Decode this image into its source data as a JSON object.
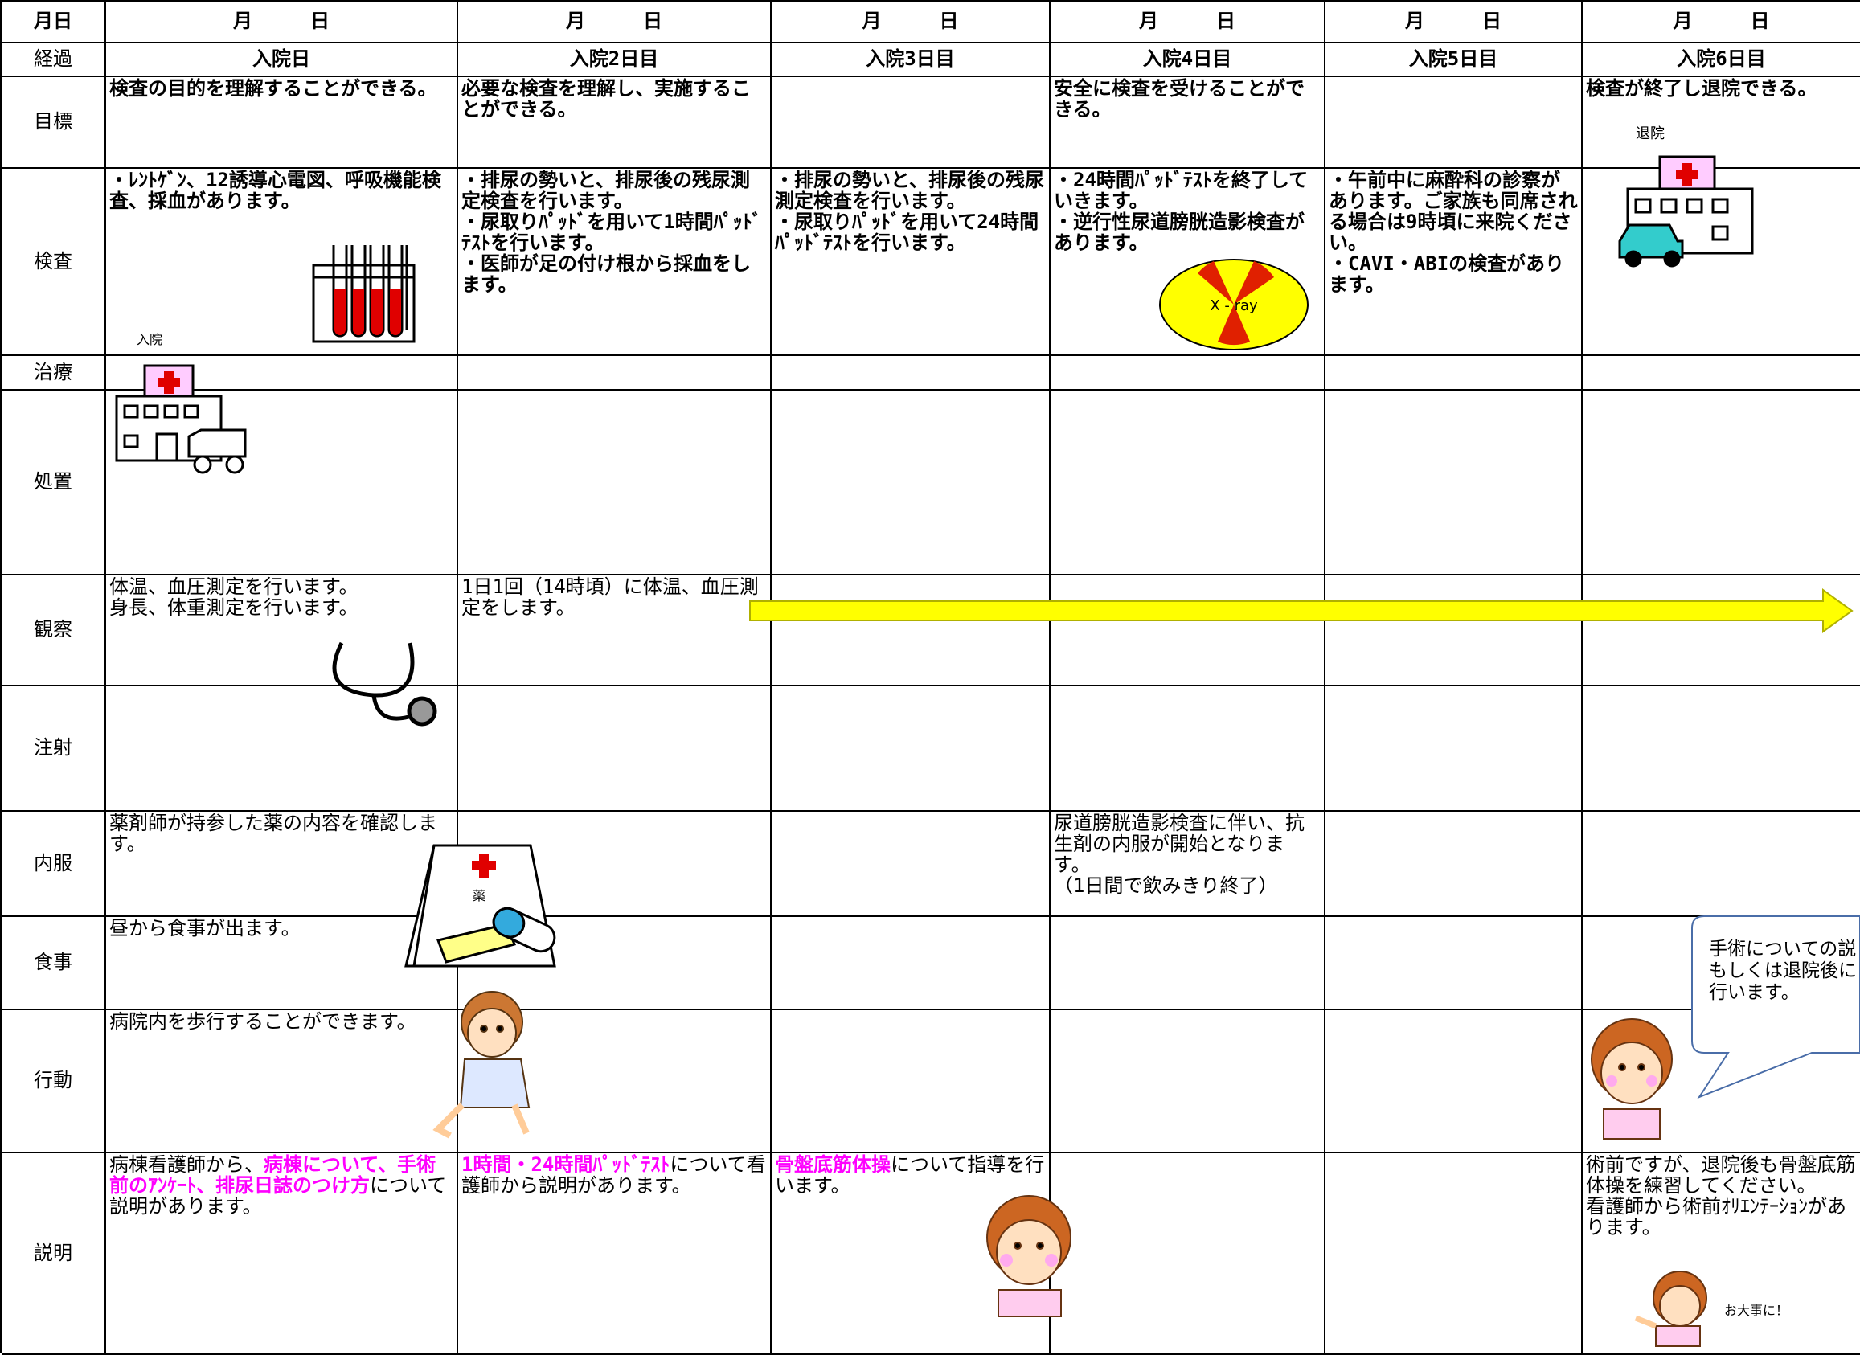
{
  "table": {
    "header": [
      "月日",
      "月　　　日",
      "月　　　日",
      "月　　　日",
      "月　　　日",
      "月　　　日",
      "月　　　日"
    ],
    "rows": [
      {
        "label": "経過",
        "cells": [
          "入院日",
          "入院2日目",
          "入院3日目",
          "入院4日目",
          "入院5日目",
          "入院6日目"
        ]
      },
      {
        "label": "目標",
        "cells": [
          "検査の目的を理解することができる。",
          "必要な検査を理解し、実施することができる。",
          null,
          "安全に検査を受けることができる。",
          null,
          "検査が終了し退院できる。"
        ]
      },
      {
        "label": "検査",
        "cells": [
          "・ﾚﾝﾄｹﾞﾝ、12誘導心電図、呼吸機能検査、採血があります。",
          "・排尿の勢いと、排尿後の残尿測定検査を行います。\n・尿取りﾊﾟｯﾄﾞを用いて1時間ﾊﾟｯﾄﾞﾃｽﾄを行います。\n・医師が足の付け根から採血をします。",
          "・排尿の勢いと、排尿後の残尿測定検査を行います。\n・尿取りﾊﾟｯﾄﾞを用いて24時間ﾊﾟｯﾄﾞﾃｽﾄを行います。",
          "・24時間ﾊﾟｯﾄﾞﾃｽﾄを終了していきます。\n・逆行性尿道膀胱造影検査があります。",
          "・午前中に麻酔科の診察があります。ご家族も同席される場合は9時頃に来院ください。\n・CAVI・ABIの検査があります。",
          null
        ]
      },
      {
        "label": "治療",
        "cells": [
          null,
          null,
          null,
          null,
          null,
          null
        ]
      },
      {
        "label": "処置",
        "cells": [
          null,
          null,
          null,
          null,
          null,
          null
        ]
      },
      {
        "label": "観察",
        "cells": [
          "体温、血圧測定を行います。\n身長、体重測定を行います。",
          "1日1回（14時頃）に体温、血圧測定をします。",
          null,
          null,
          null,
          null
        ]
      },
      {
        "label": "注射",
        "cells": [
          null,
          null,
          null,
          null,
          null,
          null
        ]
      },
      {
        "label": "内服",
        "cells": [
          "薬剤師が持参した薬の内容を確認します。",
          null,
          null,
          "尿道膀胱造影検査に伴い、抗生剤の内服が開始となります。\n（1日間で飲みきり終了）",
          null,
          null
        ]
      },
      {
        "label": "食事",
        "cells": [
          "昼から食事が出ます。",
          null,
          null,
          null,
          null,
          null
        ]
      },
      {
        "label": "行動",
        "cells": [
          "病院内を歩行することができます。",
          null,
          null,
          null,
          null,
          null
        ]
      },
      {
        "label": "説明",
        "cells": [
          [
            {
              "text": "病棟看護師から、"
            },
            {
              "text": "病棟について、手術前のｱﾝｹｰﾄ、排尿日誌のつけ方",
              "color": "#ff00ff"
            },
            {
              "text": "について説明があります。"
            }
          ],
          [
            {
              "text": "1時間・24時間ﾊﾟｯﾄﾞﾃｽﾄ",
              "color": "#ff00ff"
            },
            {
              "text": "について看護師から説明があります。"
            }
          ],
          [
            {
              "text": "骨盤底筋体操",
              "color": "#ff00ff"
            },
            {
              "text": "について指導を行います。"
            }
          ],
          null,
          null,
          "術前ですが、退院後も骨盤底筋体操を練習してください。\n看護師から術前ｵﾘｴﾝﾃｰｼｮﾝがあります。"
        ]
      }
    ]
  },
  "images": {
    "admission": "入院",
    "discharge": "退院",
    "xray": "X - ray",
    "medicine": "薬",
    "farewell": "お大事に！"
  },
  "speech_bubble": [
    "手術についての説",
    "もしくは退院後に",
    "行います。"
  ]
}
